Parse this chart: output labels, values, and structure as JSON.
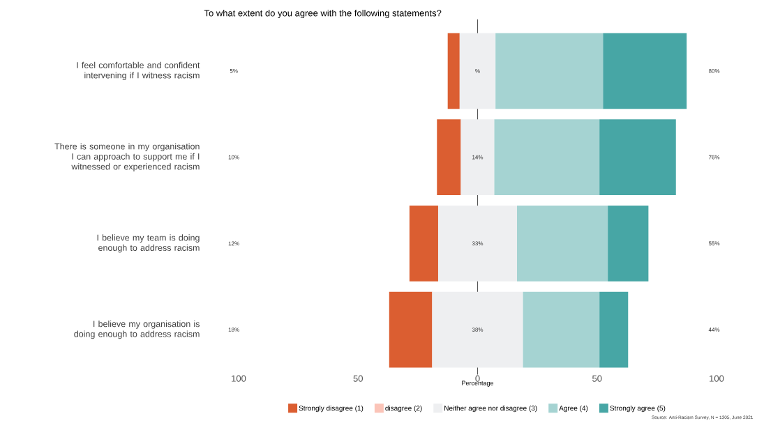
{
  "chart_data": {
    "type": "bar",
    "orientation": "horizontal",
    "title": "To what extent do you agree with the following statements?",
    "xlabel": "Percentage",
    "categories": [
      "I feel comfortable and confident intervening if I witness racism",
      "There is someone in my organisation I can approach to support me if I witnessed or experienced racism",
      "I believe my team is doing enough to address racism",
      "I believe my organisation is doing enough to address racism"
    ],
    "series": [
      {
        "name": "Strongly disagree (1)",
        "color": "#db5e31",
        "values": [
          5,
          10,
          12,
          18
        ],
        "base": [
          -12.5,
          -17,
          -28.5,
          -37
        ]
      },
      {
        "name": "disagree (2)",
        "color": "#fbc4b8",
        "values": [
          0,
          0,
          0,
          0
        ]
      },
      {
        "name": "Neither agree nor disagree (3)",
        "color": "#eeeff1",
        "values": [
          15,
          14,
          33,
          38
        ],
        "base": [
          -7.5,
          -7,
          -16.5,
          -19
        ],
        "value_labels": [
          "%",
          "14%",
          "33%",
          "38%"
        ]
      },
      {
        "name": "Agree (4)",
        "color": "#a5d3d2",
        "values": [
          45,
          44,
          38,
          32
        ],
        "base": [
          7.5,
          7,
          16.5,
          19
        ]
      },
      {
        "name": "Strongly agree (5)",
        "color": "#47a6a5",
        "values": [
          35,
          32,
          17,
          12
        ],
        "base": [
          52.5,
          51,
          54.5,
          51
        ]
      }
    ],
    "xlim": [
      -100,
      100
    ],
    "xticks": [
      {
        "value": -100,
        "label": "100"
      },
      {
        "value": -50,
        "label": "50"
      },
      0,
      50,
      100
    ],
    "ref_lines": [
      {
        "axis": "x",
        "value": 0,
        "color": "#555555"
      }
    ],
    "legend": "bottom",
    "annotations": [
      "5%",
      "10%",
      "12%",
      "18%",
      "80%",
      "76%",
      "55%",
      "44%",
      "Source: Anti-Racism Survey, N = 1305, June 2021"
    ]
  }
}
